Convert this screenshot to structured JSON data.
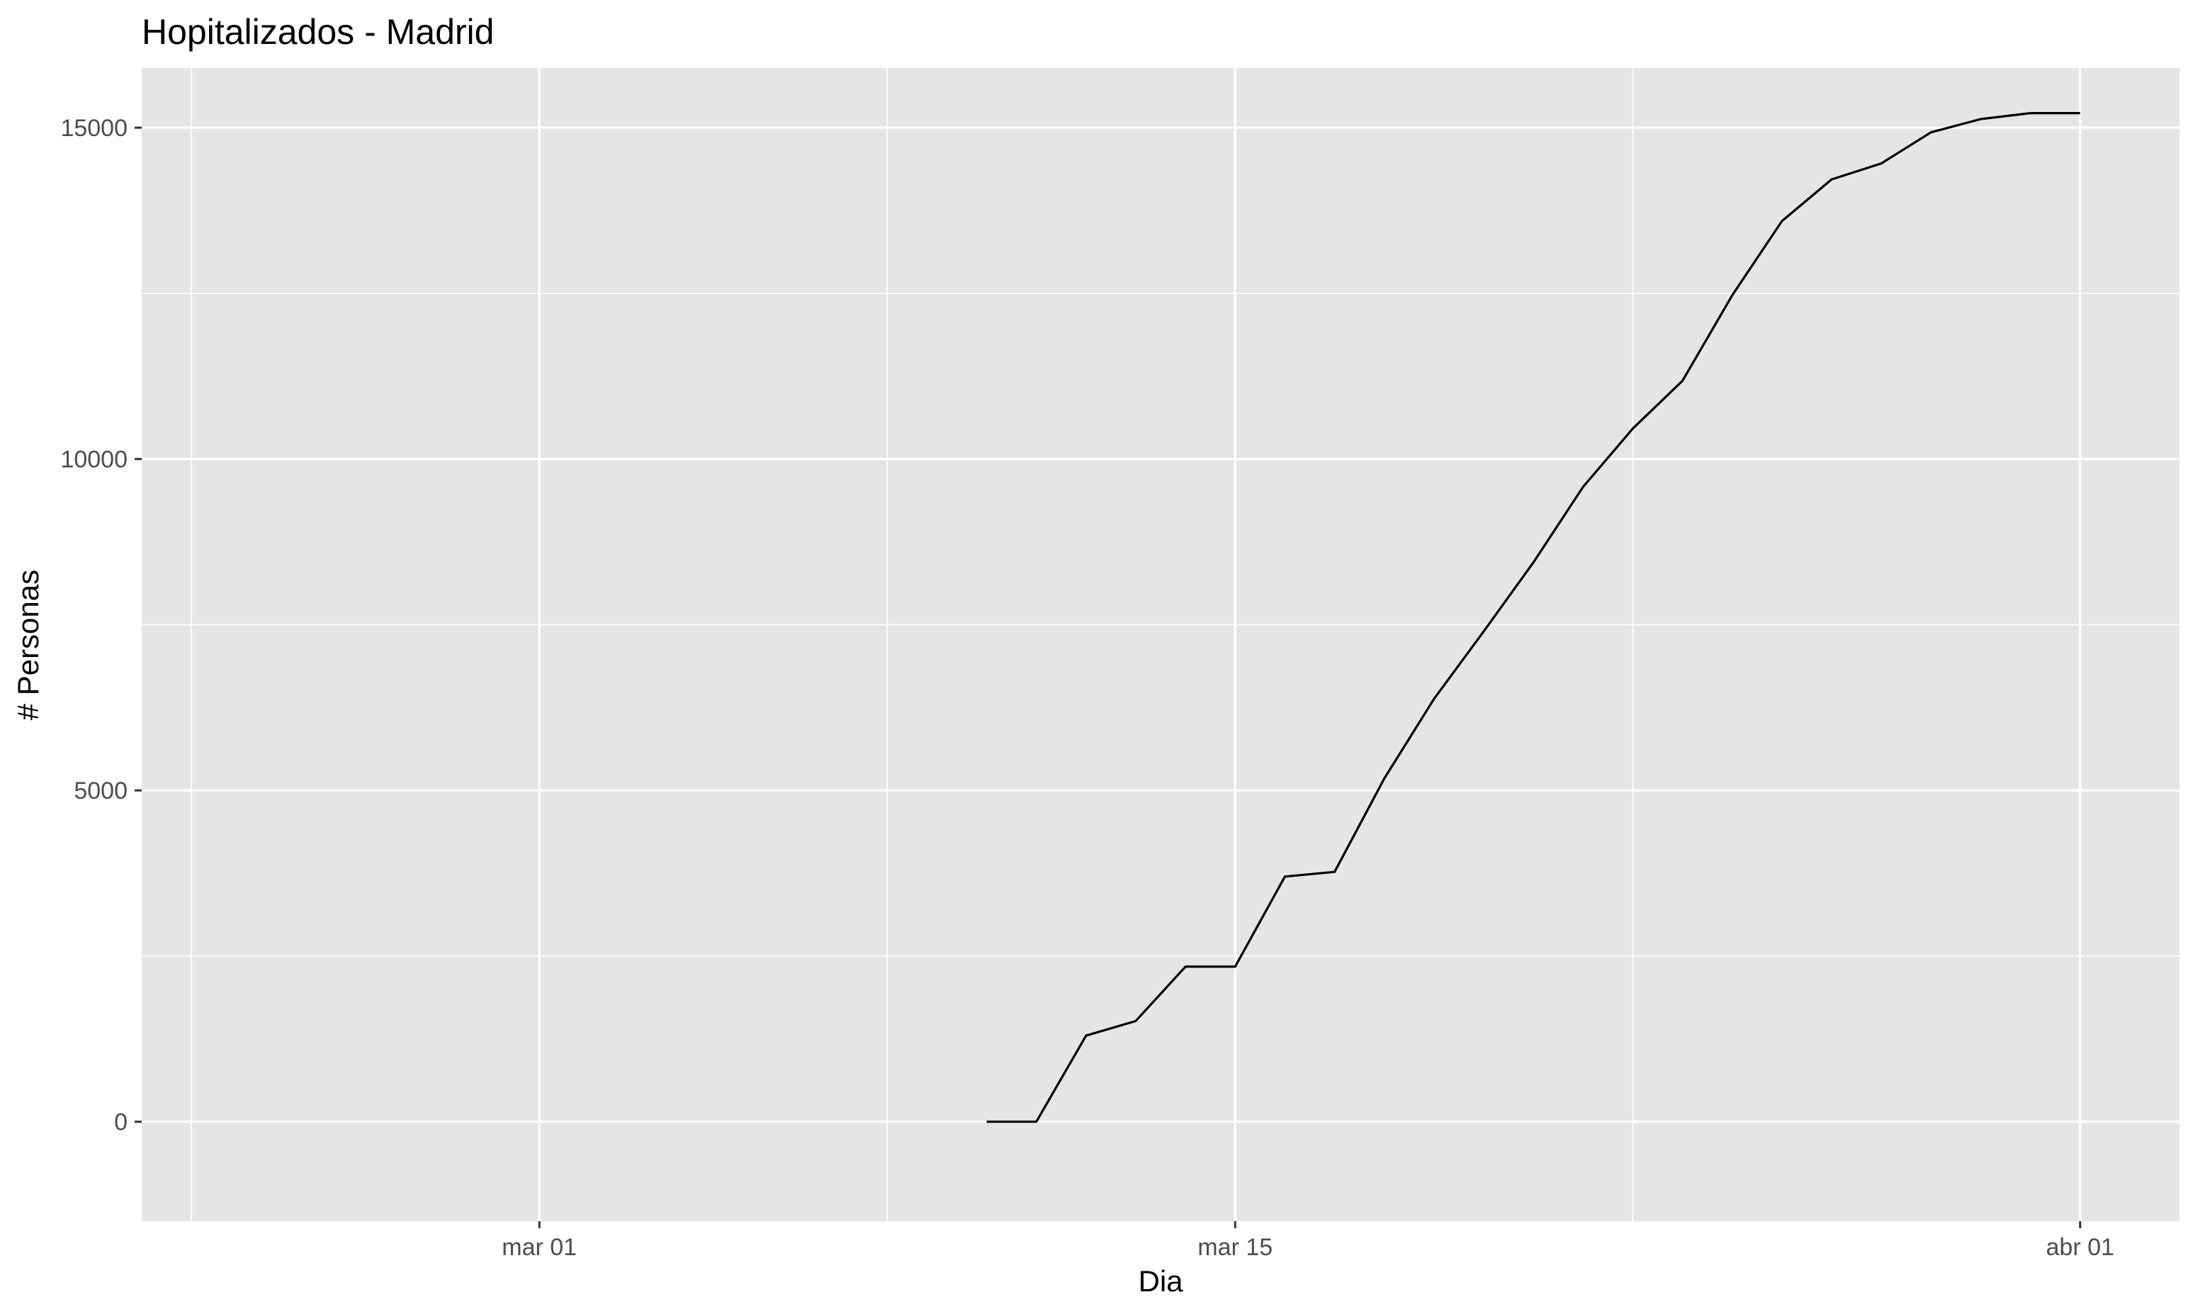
{
  "chart_data": {
    "type": "line",
    "title": "Hopitalizados - Madrid",
    "xlabel": "Dia",
    "ylabel": "# Personas",
    "x_axis": {
      "type": "date",
      "range": [
        "2020-02-22",
        "2020-04-03"
      ],
      "major_ticks": [
        {
          "date": "2020-03-01",
          "label": "mar 01"
        },
        {
          "date": "2020-03-15",
          "label": "mar 15"
        },
        {
          "date": "2020-04-01",
          "label": "abr 01"
        }
      ],
      "minor_ticks": [
        "2020-02-23",
        "2020-03-08",
        "2020-03-23"
      ]
    },
    "y_axis": {
      "range": [
        -1500,
        15900
      ],
      "major_ticks": [
        {
          "value": 0,
          "label": "0"
        },
        {
          "value": 5000,
          "label": "5000"
        },
        {
          "value": 10000,
          "label": "10000"
        },
        {
          "value": 15000,
          "label": "15000"
        }
      ],
      "minor_ticks": [
        2500,
        7500,
        12500
      ]
    },
    "grid": true,
    "legend": "none",
    "colors": {
      "panel_background": "#e5e5e5",
      "grid_line": "#ffffff",
      "series_line": "#000000",
      "tick_mark": "#333333"
    },
    "series": [
      {
        "points": [
          {
            "x": "2020-03-10",
            "y": 0
          },
          {
            "x": "2020-03-11",
            "y": 0
          },
          {
            "x": "2020-03-12",
            "y": 1300
          },
          {
            "x": "2020-03-13",
            "y": 1520
          },
          {
            "x": "2020-03-14",
            "y": 2340
          },
          {
            "x": "2020-03-15",
            "y": 2340
          },
          {
            "x": "2020-03-16",
            "y": 3700
          },
          {
            "x": "2020-03-17",
            "y": 3770
          },
          {
            "x": "2020-03-18",
            "y": 5180
          },
          {
            "x": "2020-03-19",
            "y": 6380
          },
          {
            "x": "2020-03-20",
            "y": 7400
          },
          {
            "x": "2020-03-21",
            "y": 8440
          },
          {
            "x": "2020-03-22",
            "y": 9580
          },
          {
            "x": "2020-03-23",
            "y": 10460
          },
          {
            "x": "2020-03-24",
            "y": 11180
          },
          {
            "x": "2020-03-25",
            "y": 12470
          },
          {
            "x": "2020-03-26",
            "y": 13590
          },
          {
            "x": "2020-03-27",
            "y": 14220
          },
          {
            "x": "2020-03-28",
            "y": 14460
          },
          {
            "x": "2020-03-29",
            "y": 14930
          },
          {
            "x": "2020-03-30",
            "y": 15130
          },
          {
            "x": "2020-03-31",
            "y": 15220
          },
          {
            "x": "2020-04-01",
            "y": 15220
          }
        ]
      }
    ]
  }
}
